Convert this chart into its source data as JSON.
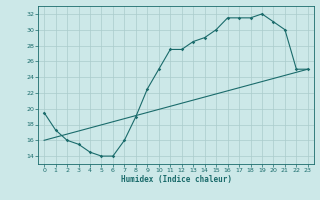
{
  "xlabel": "Humidex (Indice chaleur)",
  "background_color": "#cce8e8",
  "grid_color": "#aacccc",
  "line_color": "#1a6b6b",
  "xlim": [
    -0.5,
    23.5
  ],
  "ylim": [
    13.0,
    33.0
  ],
  "xticks": [
    0,
    1,
    2,
    3,
    4,
    5,
    6,
    7,
    8,
    9,
    10,
    11,
    12,
    13,
    14,
    15,
    16,
    17,
    18,
    19,
    20,
    21,
    22,
    23
  ],
  "yticks": [
    14,
    16,
    18,
    20,
    22,
    24,
    26,
    28,
    30,
    32
  ],
  "line1_x": [
    0,
    1,
    2,
    3,
    4,
    5,
    6,
    7,
    8,
    9,
    10,
    11,
    12,
    13,
    14,
    15,
    16,
    17,
    18,
    19,
    20,
    21,
    22,
    23
  ],
  "line1_y": [
    19.5,
    17.3,
    16.0,
    15.5,
    14.5,
    14.0,
    14.0,
    16.0,
    19.0,
    22.5,
    25.0,
    27.5,
    27.5,
    28.5,
    29.0,
    30.0,
    31.5,
    31.5,
    31.5,
    32.0,
    31.0,
    30.0,
    25.0,
    25.0
  ],
  "line2_x": [
    0,
    1,
    23
  ],
  "line2_y": [
    19.5,
    17.3,
    25.0
  ],
  "straight_line_x": [
    0,
    23
  ],
  "straight_line_y": [
    16.0,
    25.0
  ]
}
